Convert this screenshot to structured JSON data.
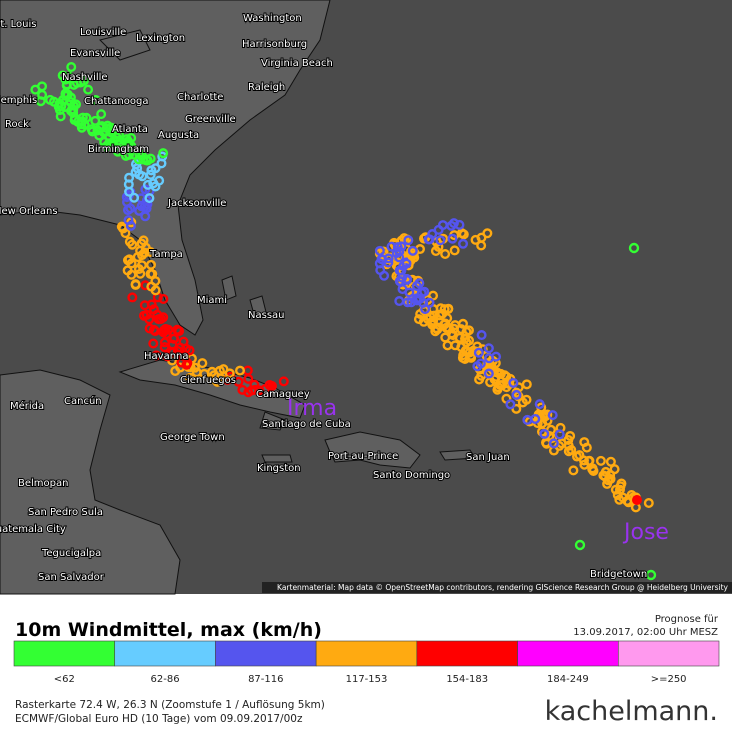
{
  "map": {
    "cities": [
      "St. Louis",
      "Louisville",
      "Lexington",
      "Washington",
      "Harrisonburg",
      "Virginia Beach",
      "Evansville",
      "Nashville",
      "Charlotte",
      "Raleigh",
      "Memphis",
      "Chattanooga",
      "Greenville",
      "Rock",
      "Augusta",
      "Atlanta",
      "Birmingham",
      "Jacksonville",
      "New Orleans",
      "Tampa",
      "Miami",
      "Nassau",
      "Havanna",
      "Cienfuegos",
      "Camaguey",
      "Santiago de Cuba",
      "Mérida",
      "Cancún",
      "George Town",
      "Kingston",
      "Port-au-Prince",
      "Santo Domingo",
      "San Juan",
      "Belmopan",
      "San Pedro Sula",
      "Guatemala City",
      "Tegucigalpa",
      "San Salvador",
      "Bridgetown"
    ],
    "storms": [
      "Irma",
      "Jose"
    ],
    "attribution": "Kartenmaterial: Map data © OpenStreetMap contributors, rendering GIScience Research Group @ Heidelberg University"
  },
  "legend": {
    "title": "10m Windmittel, max (km/h)",
    "forecast_label": "Prognose für",
    "forecast_time": "13.09.2017, 02:00 Uhr MESZ",
    "classes": [
      {
        "label": "<62",
        "color": "#33ff33"
      },
      {
        "label": "62-86",
        "color": "#66ccff"
      },
      {
        "label": "87-116",
        "color": "#5555ee"
      },
      {
        "label": "117-153",
        "color": "#ffaa11"
      },
      {
        "label": "154-183",
        "color": "#ff0000"
      },
      {
        "label": "184-249",
        "color": "#ff00ff"
      },
      {
        "label": ">=250",
        "color": "#ff99ee"
      }
    ]
  },
  "footer": {
    "line1": "Rasterkarte 72.4 W, 26.3 N (Zoomstufe 1 / Auflösung 5km)",
    "line2": "ECMWF/Global Euro HD (10 Tage) vom 09.09.2017/00z",
    "brand": "kachelmann."
  }
}
